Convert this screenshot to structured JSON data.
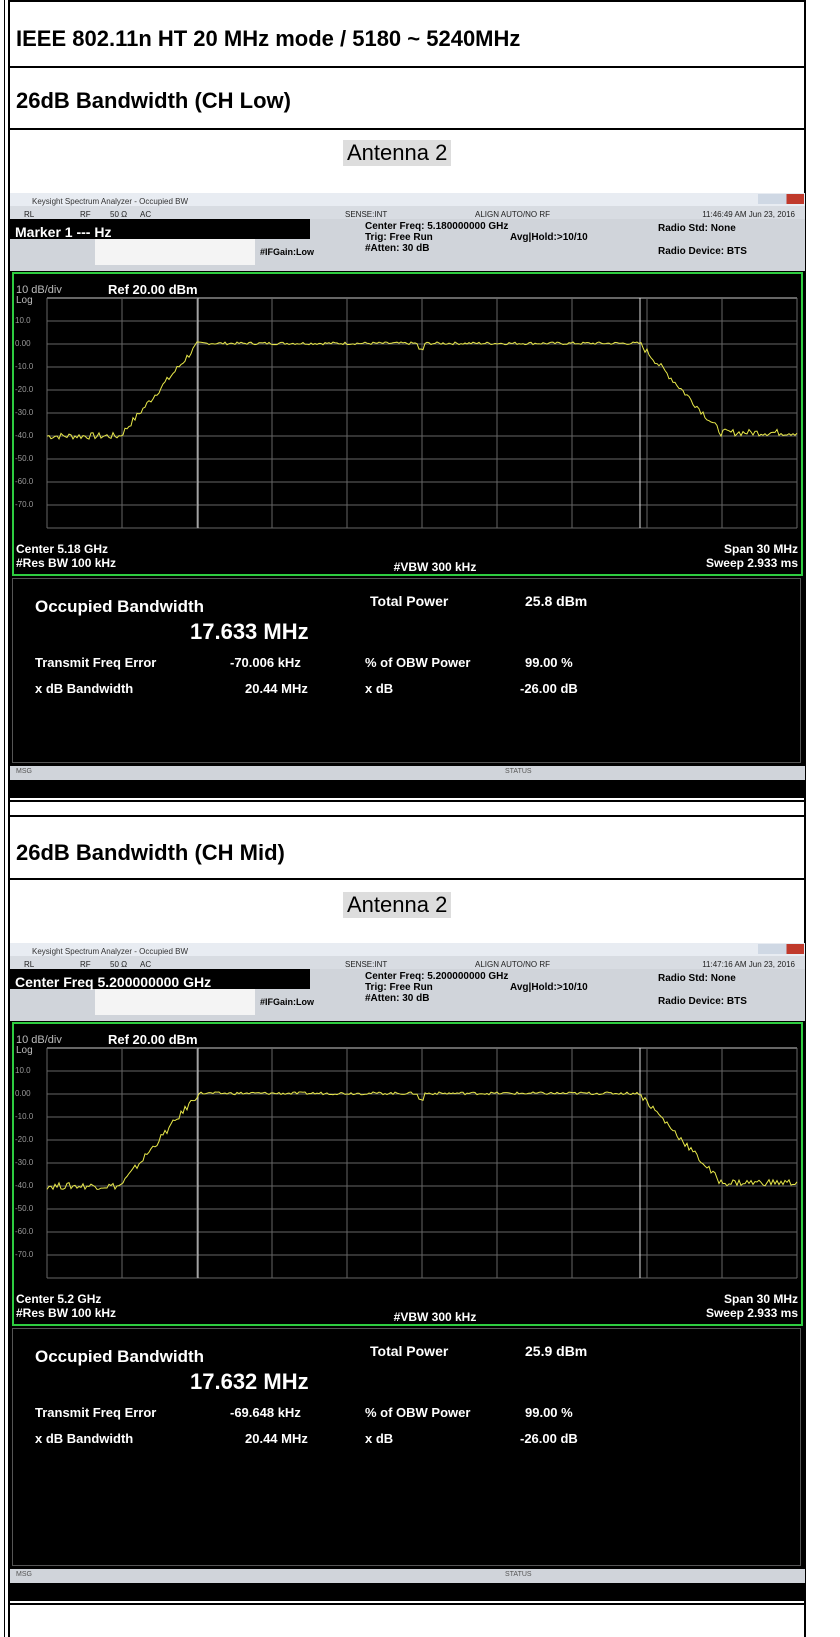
{
  "header": {
    "title": "IEEE 802.11n HT 20 MHz mode / 5180 ~ 5240MHz"
  },
  "sections": [
    {
      "title": "26dB Bandwidth (CH Low)",
      "antenna": "Antenna 2",
      "screen": {
        "window_title": "Keysight Spectrum Analyzer - Occupied BW",
        "rl": "RL",
        "rf": "RF",
        "impedance": "50 Ω",
        "coupling": "AC",
        "sense": "SENSE:INT",
        "align": "ALIGN AUTO/NO RF",
        "timestamp": "11:46:49 AM Jun 23, 2016",
        "marker": "Marker 1 --- Hz",
        "ifgain": "#IFGain:Low",
        "center_freq": "Center Freq: 5.180000000 GHz",
        "trig": "Trig: Free Run",
        "avg": "Avg|Hold:>10/10",
        "atten": "#Atten: 30 dB",
        "radio_std": "Radio Std: None",
        "radio_device": "Radio Device: BTS",
        "scale": "10 dB/div",
        "ref": "Ref 20.00 dBm",
        "log": "Log",
        "y_labels": [
          "10.0",
          "0.00",
          "-10.0",
          "-20.0",
          "-30.0",
          "-40.0",
          "-50.0",
          "-60.0",
          "-70.0"
        ],
        "center": "Center 5.18 GHz",
        "res_bw": "#Res BW 100 kHz",
        "vbw": "#VBW 300 kHz",
        "span": "Span 30 MHz",
        "sweep": "Sweep 2.933 ms",
        "obw_label": "Occupied Bandwidth",
        "obw_value": "17.633 MHz",
        "total_power_label": "Total Power",
        "total_power": "25.8 dBm",
        "freq_error_label": "Transmit Freq Error",
        "freq_error": "-70.006 kHz",
        "obw_power_label": "% of OBW Power",
        "obw_power": "99.00 %",
        "xdb_bw_label": "x dB Bandwidth",
        "xdb_bw": "20.44 MHz",
        "xdb_label": "x dB",
        "xdb": "-26.00 dB",
        "msg": "MSG",
        "status": "STATUS"
      }
    },
    {
      "title": "26dB Bandwidth (CH Mid)",
      "antenna": "Antenna 2",
      "screen": {
        "window_title": "Keysight Spectrum Analyzer - Occupied BW",
        "rl": "RL",
        "rf": "RF",
        "impedance": "50 Ω",
        "coupling": "AC",
        "sense": "SENSE:INT",
        "align": "ALIGN AUTO/NO RF",
        "timestamp": "11:47:16 AM Jun 23, 2016",
        "marker": "Center Freq 5.200000000 GHz",
        "ifgain": "#IFGain:Low",
        "center_freq": "Center Freq: 5.200000000 GHz",
        "trig": "Trig: Free Run",
        "avg": "Avg|Hold:>10/10",
        "atten": "#Atten: 30 dB",
        "radio_std": "Radio Std: None",
        "radio_device": "Radio Device: BTS",
        "scale": "10 dB/div",
        "ref": "Ref 20.00 dBm",
        "log": "Log",
        "y_labels": [
          "10.0",
          "0.00",
          "-10.0",
          "-20.0",
          "-30.0",
          "-40.0",
          "-50.0",
          "-60.0",
          "-70.0"
        ],
        "center": "Center 5.2 GHz",
        "res_bw": "#Res BW 100 kHz",
        "vbw": "#VBW 300 kHz",
        "span": "Span 30 MHz",
        "sweep": "Sweep 2.933 ms",
        "obw_label": "Occupied Bandwidth",
        "obw_value": "17.632 MHz",
        "total_power_label": "Total Power",
        "total_power": "25.9 dBm",
        "freq_error_label": "Transmit Freq Error",
        "freq_error": "-69.648 kHz",
        "obw_power_label": "% of OBW Power",
        "obw_power": "99.00 %",
        "xdb_bw_label": "x dB Bandwidth",
        "xdb_bw": "20.44 MHz",
        "xdb_label": "x dB",
        "xdb": "-26.00 dB",
        "msg": "MSG",
        "status": "STATUS"
      }
    }
  ]
}
